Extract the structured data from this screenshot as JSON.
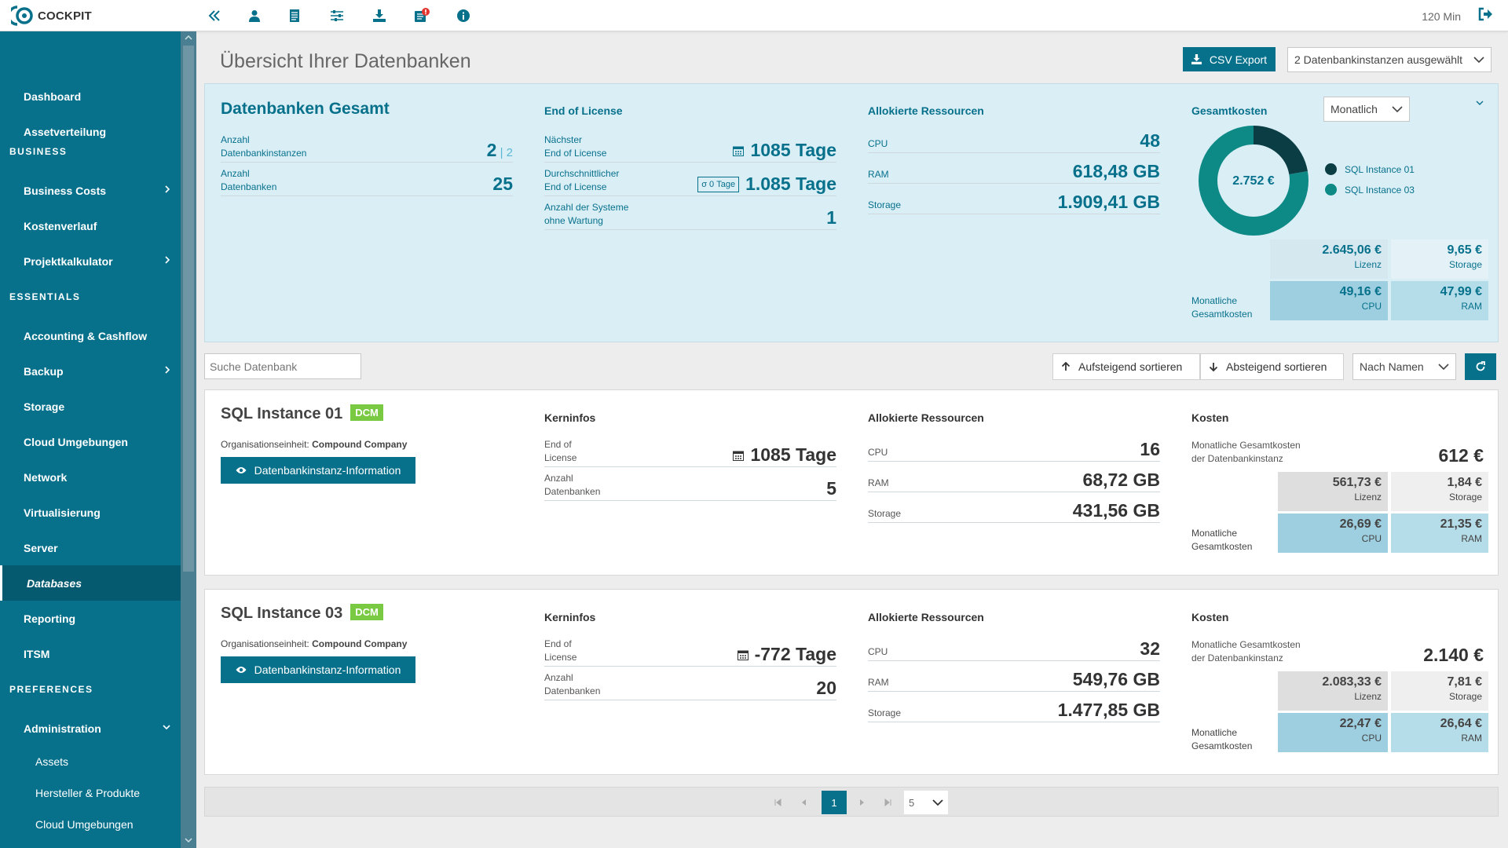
{
  "app": {
    "brand": "COCKPIT",
    "timer": "120 Min"
  },
  "toolbar_icons": [
    "collapse-icon",
    "user-icon",
    "document-icon",
    "sliders-icon",
    "download-icon",
    "notification-icon",
    "info-icon"
  ],
  "sidebar": {
    "items": [
      {
        "label": "Dashboard"
      },
      {
        "label": "Assetverteilung"
      }
    ],
    "sections": [
      "BUSINESS",
      "ESSENTIALS",
      "PREFERENCES"
    ],
    "business": [
      {
        "label": "Business Costs"
      },
      {
        "label": "Kostenverlauf"
      },
      {
        "label": "Projektkalkulator"
      }
    ],
    "essentials": [
      {
        "label": "Accounting & Cashflow"
      },
      {
        "label": "Backup"
      },
      {
        "label": "Storage"
      },
      {
        "label": "Cloud Umgebungen"
      },
      {
        "label": "Network"
      },
      {
        "label": "Virtualisierung"
      },
      {
        "label": "Server"
      },
      {
        "label": "Databases"
      },
      {
        "label": "Reporting"
      },
      {
        "label": "ITSM"
      }
    ],
    "preferences": [
      {
        "label": "Administration"
      }
    ],
    "admin_sub": [
      {
        "label": "Assets"
      },
      {
        "label": "Hersteller & Produkte"
      },
      {
        "label": "Cloud Umgebungen"
      }
    ]
  },
  "main": {
    "title": "Übersicht Ihrer Datenbanken",
    "csv_label": "CSV Export",
    "instance_select": "2 Datenbankinstanzen ausgewählt"
  },
  "summary": {
    "title": "Datenbanken Gesamt",
    "instances_label_1": "Anzahl",
    "instances_label_2": "Datenbankinstanzen",
    "instances_value": "2",
    "instances_total": "2",
    "db_label_1": "Anzahl",
    "db_label_2": "Datenbanken",
    "db_value": "25",
    "eol_title": "End of License",
    "next_label_1": "Nächster",
    "next_label_2": "End of License",
    "next_value": "1085 Tage",
    "avg_label_1": "Durchschnittlicher",
    "avg_label_2": "End of License",
    "avg_tag": "σ 0 Tage",
    "avg_value": "1.085 Tage",
    "nomaint_label_1": "Anzahl der Systeme",
    "nomaint_label_2": "ohne Wartung",
    "nomaint_value": "1",
    "res_title": "Allokierte Ressourcen",
    "cpu_label": "CPU",
    "cpu_value": "48",
    "ram_label": "RAM",
    "ram_value": "618,48 GB",
    "storage_label": "Storage",
    "storage_value": "1.909,41 GB",
    "cost_title": "Gesamtkosten",
    "period": "Monatlich",
    "donut_total": "2.752 €",
    "legend": [
      "SQL Instance 01",
      "SQL Instance 03"
    ],
    "legend_colors": [
      "#0a3d44",
      "#0e8a86"
    ],
    "lizenz_value": "2.645,06 €",
    "lizenz_label": "Lizenz",
    "storage_cost": "9,65 €",
    "storage_cost_label": "Storage",
    "cpu_cost": "49,16 €",
    "cpu_cost_label": "CPU",
    "ram_cost": "47,99 €",
    "ram_cost_label": "RAM",
    "monthly_label_1": "Monatliche",
    "monthly_label_2": "Gesamtkosten"
  },
  "chart_data": {
    "type": "pie",
    "title": "",
    "categories": [
      "SQL Instance 01",
      "SQL Instance 03"
    ],
    "values": [
      612,
      2140
    ]
  },
  "filter": {
    "search_placeholder": "Suche Datenbank",
    "asc_label": "Aufsteigend sortieren",
    "desc_label": "Absteigend sortieren",
    "sort_by": "Nach Namen"
  },
  "instances": [
    {
      "name": "SQL Instance 01",
      "badge": "DCM",
      "org_label": "Organisationseinheit:",
      "org": "Compound Company",
      "info_btn": "Datenbankinstanz-Information",
      "core_title": "Kerninfos",
      "eol_label_1": "End of",
      "eol_label_2": "License",
      "eol_value": "1085 Tage",
      "db_label_1": "Anzahl",
      "db_label_2": "Datenbanken",
      "db_value": "5",
      "res_title": "Allokierte Ressourcen",
      "cpu_label": "CPU",
      "cpu": "16",
      "ram_label": "RAM",
      "ram": "68,72 GB",
      "storage_label": "Storage",
      "storage": "431,56 GB",
      "cost_title": "Kosten",
      "total_label_1": "Monatliche Gesamtkosten",
      "total_label_2": "der Datenbankinstanz",
      "total": "612 €",
      "lizenz": "561,73 €",
      "lizenz_label": "Lizenz",
      "storage_cost": "1,84 €",
      "storage_cost_label": "Storage",
      "cpu_cost": "26,69 €",
      "cpu_cost_label": "CPU",
      "ram_cost": "21,35 €",
      "ram_cost_label": "RAM",
      "monthly_label_1": "Monatliche",
      "monthly_label_2": "Gesamtkosten"
    },
    {
      "name": "SQL Instance 03",
      "badge": "DCM",
      "org_label": "Organisationseinheit:",
      "org": "Compound Company",
      "info_btn": "Datenbankinstanz-Information",
      "core_title": "Kerninfos",
      "eol_label_1": "End of",
      "eol_label_2": "License",
      "eol_value": "-772 Tage",
      "db_label_1": "Anzahl",
      "db_label_2": "Datenbanken",
      "db_value": "20",
      "res_title": "Allokierte Ressourcen",
      "cpu_label": "CPU",
      "cpu": "32",
      "ram_label": "RAM",
      "ram": "549,76 GB",
      "storage_label": "Storage",
      "storage": "1.477,85 GB",
      "cost_title": "Kosten",
      "total_label_1": "Monatliche Gesamtkosten",
      "total_label_2": "der Datenbankinstanz",
      "total": "2.140 €",
      "lizenz": "2.083,33 €",
      "lizenz_label": "Lizenz",
      "storage_cost": "7,81 €",
      "storage_cost_label": "Storage",
      "cpu_cost": "22,47 €",
      "cpu_cost_label": "CPU",
      "ram_cost": "26,64 €",
      "ram_cost_label": "RAM",
      "monthly_label_1": "Monatliche",
      "monthly_label_2": "Gesamtkosten"
    }
  ],
  "pagination": {
    "current": "1",
    "page_size": "5"
  },
  "colors": {
    "primary": "#07718c",
    "summary_bg": "#daeef6",
    "badge": "#7ac943",
    "cost_grey": "#dedede",
    "cost_blue": "#a8d8e8",
    "cost_lightblue": "#c9e8f2"
  }
}
